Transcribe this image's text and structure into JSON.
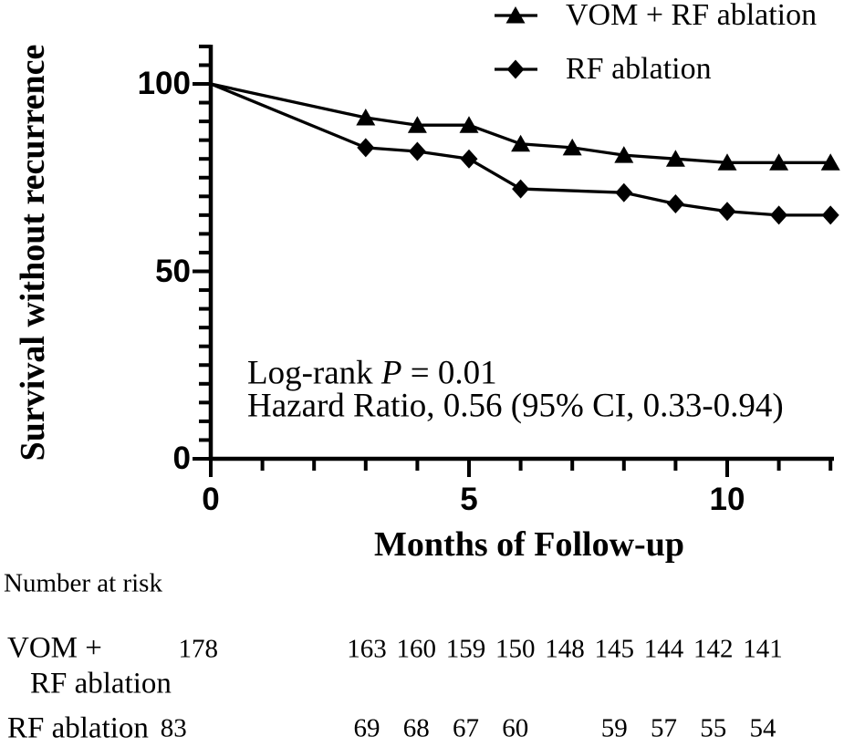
{
  "chart_data": {
    "type": "line",
    "title": "",
    "xlabel": "Months of Follow-up",
    "ylabel": "Survival without recurrence",
    "xlim": [
      0,
      12.2
    ],
    "ylim": [
      0,
      110
    ],
    "x_major_ticks": [
      0,
      5,
      10
    ],
    "x_minor_tick_step": 1,
    "x_minor_tick_max": 12,
    "y_major_ticks": [
      0,
      50,
      100
    ],
    "y_minor_tick_step": 5,
    "y_minor_tick_max": 110,
    "grid": false,
    "legend_position": "top-right",
    "series": [
      {
        "name": "VOM + RF ablation",
        "marker": "triangle",
        "color": "#000000",
        "x": [
          0,
          3,
          4,
          5,
          6,
          7,
          8,
          9,
          10,
          11,
          12
        ],
        "y": [
          100,
          91,
          89,
          89,
          84,
          83,
          81,
          80,
          79,
          79,
          79
        ]
      },
      {
        "name": "RF ablation",
        "marker": "diamond",
        "color": "#000000",
        "x": [
          0,
          3,
          4,
          5,
          6,
          8,
          9,
          10,
          11,
          12
        ],
        "y": [
          100,
          83,
          82,
          80,
          72,
          71,
          68,
          66,
          65,
          65
        ]
      }
    ],
    "annotations": [
      "Log-rank P = 0.01",
      "Hazard Ratio, 0.56 (95% CI, 0.33-0.94)"
    ]
  },
  "legend": {
    "items": [
      {
        "label": "VOM + RF ablation",
        "marker": "triangle-marker"
      },
      {
        "label": "RF ablation",
        "marker": "diamond-marker"
      }
    ]
  },
  "annotation": {
    "line1_prefix": "Log-rank ",
    "line1_italic": "P",
    "line1_suffix": " = 0.01",
    "line2": "Hazard Ratio, 0.56 (95% CI, 0.33-0.94)"
  },
  "risk_table": {
    "header": "Number at risk",
    "rows": [
      {
        "label_line1": "VOM +",
        "label_line2": "RF ablation",
        "initial": {
          "month": 0,
          "value": "178"
        },
        "counts": [
          {
            "month": 3,
            "value": "163"
          },
          {
            "month": 4,
            "value": "160"
          },
          {
            "month": 5,
            "value": "159"
          },
          {
            "month": 6,
            "value": "150"
          },
          {
            "month": 7,
            "value": "148"
          },
          {
            "month": 8,
            "value": "145"
          },
          {
            "month": 9,
            "value": "144"
          },
          {
            "month": 10,
            "value": "142"
          },
          {
            "month": 11,
            "value": "141"
          }
        ]
      },
      {
        "label_line1": "RF ablation",
        "initial": {
          "month": 0,
          "value": "83"
        },
        "counts": [
          {
            "month": 3,
            "value": "69"
          },
          {
            "month": 4,
            "value": "68"
          },
          {
            "month": 5,
            "value": "67"
          },
          {
            "month": 6,
            "value": "60"
          },
          {
            "month": 8,
            "value": "59"
          },
          {
            "month": 9,
            "value": "57"
          },
          {
            "month": 10,
            "value": "55"
          },
          {
            "month": 11,
            "value": "54"
          }
        ]
      }
    ]
  },
  "colors": {
    "foreground": "#000000",
    "background": "#ffffff"
  }
}
